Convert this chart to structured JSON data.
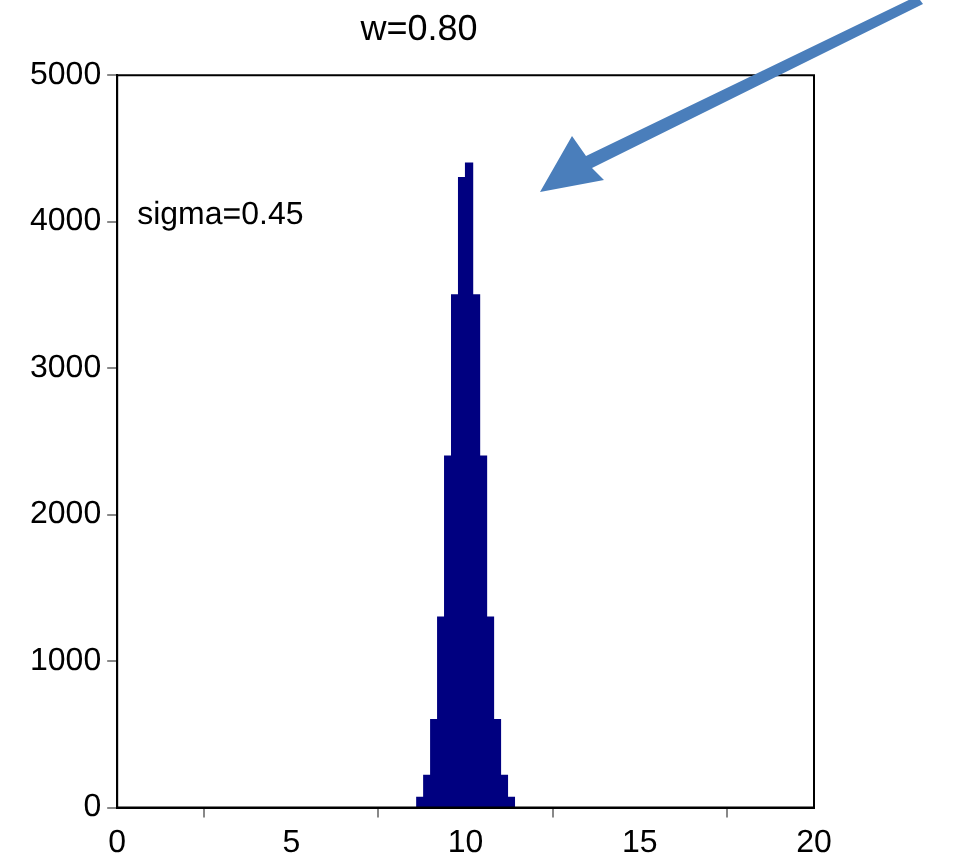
{
  "chart_data": {
    "type": "histogram",
    "title": "w=0.80",
    "bins": [
      8.6,
      8.8,
      9.0,
      9.2,
      9.4,
      9.6,
      9.8,
      10.0,
      10.2,
      10.4,
      10.6,
      10.8,
      11.0,
      11.2,
      11.4
    ],
    "values": [
      70,
      220,
      600,
      1300,
      2400,
      3500,
      4300,
      4400,
      3500,
      2400,
      1300,
      600,
      220,
      70
    ],
    "color": "#000080",
    "xlim": [
      0,
      20
    ],
    "xticks": [
      0,
      5,
      10,
      15,
      20
    ],
    "ylim": [
      0,
      5000
    ],
    "yticks": [
      0,
      1000,
      2000,
      3000,
      4000,
      5000
    ],
    "grid": false,
    "legend": false,
    "annotations": [
      "sigma=0.45"
    ]
  }
}
